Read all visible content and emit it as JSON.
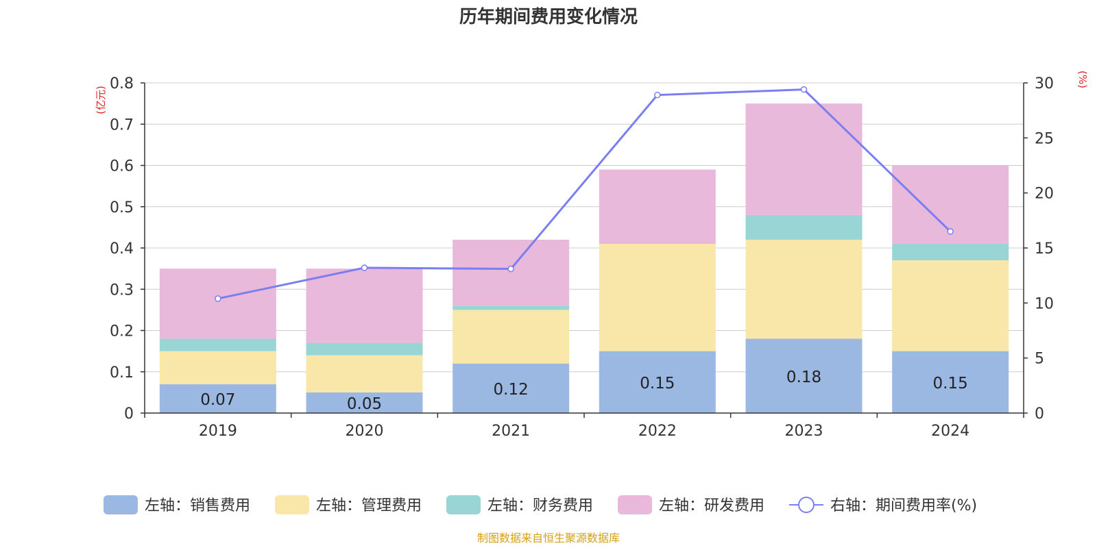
{
  "chart_data": {
    "type": "bar",
    "title": "历年期间费用变化情况",
    "source": "制图数据来自恒生聚源数据库",
    "left_axis_unit": "(亿元)",
    "right_axis_unit": "(%)",
    "categories": [
      "2019",
      "2020",
      "2021",
      "2022",
      "2023",
      "2024"
    ],
    "left_axis": {
      "min": 0,
      "max": 0.8,
      "ticks": [
        "0",
        "0.1",
        "0.2",
        "0.3",
        "0.4",
        "0.5",
        "0.6",
        "0.7",
        "0.8"
      ]
    },
    "right_axis": {
      "min": 0,
      "max": 30,
      "ticks": [
        "0",
        "5",
        "10",
        "15",
        "20",
        "25",
        "30"
      ]
    },
    "grid": true,
    "legend_position": "bottom",
    "series": [
      {
        "name": "左轴：销售费用",
        "type": "bar",
        "color": "#9bb8e3",
        "values": [
          0.07,
          0.05,
          0.12,
          0.15,
          0.18,
          0.15
        ],
        "labels": [
          "0.07",
          "0.05",
          "0.12",
          "0.15",
          "0.18",
          "0.15"
        ]
      },
      {
        "name": "左轴：管理费用",
        "type": "bar",
        "color": "#f8e7a8",
        "values": [
          0.08,
          0.09,
          0.13,
          0.26,
          0.24,
          0.22
        ]
      },
      {
        "name": "左轴：财务费用",
        "type": "bar",
        "color": "#99d5d5",
        "values": [
          0.03,
          0.03,
          0.01,
          0.0,
          0.06,
          0.04
        ]
      },
      {
        "name": "左轴：研发费用",
        "type": "bar",
        "color": "#e8b9da",
        "values": [
          0.17,
          0.18,
          0.16,
          0.18,
          0.27,
          0.19
        ]
      },
      {
        "name": "右轴：期间费用率(%)",
        "type": "line",
        "color": "#7b7ef0",
        "values": [
          10.4,
          13.2,
          13.1,
          28.9,
          29.4,
          16.5
        ]
      }
    ]
  }
}
